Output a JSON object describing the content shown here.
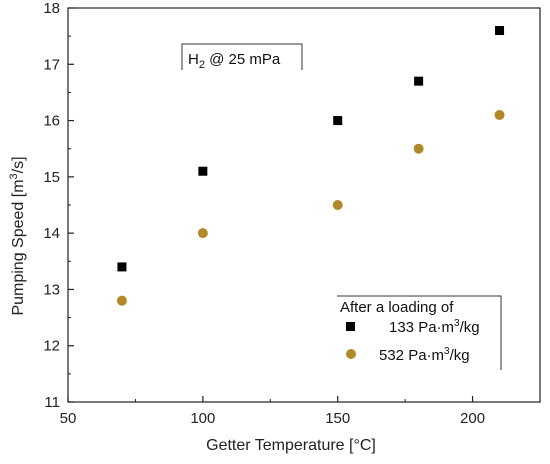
{
  "chart_data": {
    "type": "scatter",
    "xlabel": "Getter Temperature [°C]",
    "ylabel_main": "Pumping Speed [m",
    "ylabel_sup": "3",
    "ylabel_end": "/s]",
    "xlim": [
      50,
      225
    ],
    "ylim": [
      11,
      18
    ],
    "xticks": [
      50,
      100,
      150,
      200
    ],
    "yticks": [
      11,
      12,
      13,
      14,
      15,
      16,
      17,
      18
    ],
    "annotation": {
      "pre": "H",
      "sub": "2",
      "post": " @ 25 mPa"
    },
    "legend": {
      "title": "After a loading of",
      "placement": "bottom-right"
    },
    "series": [
      {
        "label_main": "133 Pa·m",
        "label_sup": "3",
        "label_end": "/kg",
        "marker": "square",
        "color": "#000000",
        "x": [
          70,
          100,
          150,
          180,
          210
        ],
        "y": [
          13.4,
          15.1,
          16.0,
          16.7,
          17.6
        ]
      },
      {
        "label_main": "532 Pa·m",
        "label_sup": "3",
        "label_end": "/kg",
        "marker": "circle",
        "color": "#b08a28",
        "x": [
          70,
          100,
          150,
          180,
          210
        ],
        "y": [
          12.8,
          14.0,
          14.5,
          15.5,
          16.1
        ]
      }
    ]
  }
}
